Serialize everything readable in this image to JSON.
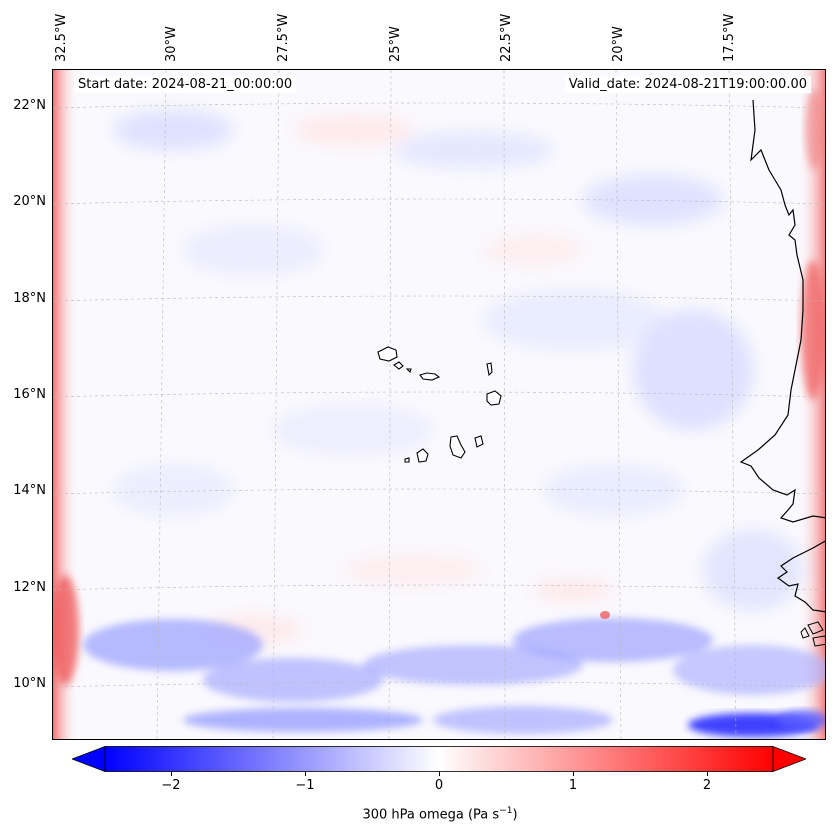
{
  "map": {
    "title_start": "Start date: 2024-08-21_00:00:00",
    "title_valid": "Valid_date: 2024-08-21T19:00:00.00",
    "longitude_labels": [
      "32.5°W",
      "30°W",
      "27.5°W",
      "25°W",
      "22.5°W",
      "20°W",
      "17.5°W"
    ],
    "latitude_labels": [
      "22°N",
      "20°N",
      "18°N",
      "16°N",
      "14°N",
      "12°N",
      "10°N"
    ],
    "variable": "300 hPa omega",
    "units": "Pa s",
    "units_superscript": "−1",
    "features": [
      "coastline-west-africa",
      "cape-verde-islands"
    ]
  },
  "colorbar": {
    "min": -2.75,
    "max": 2.75,
    "ticks": [
      "−2",
      "−1",
      "0",
      "1",
      "2"
    ],
    "tick_values": [
      -2,
      -1,
      0,
      1,
      2
    ],
    "low_color": "#0000ff",
    "mid_color": "#ffffff",
    "high_color": "#ff0000"
  }
}
